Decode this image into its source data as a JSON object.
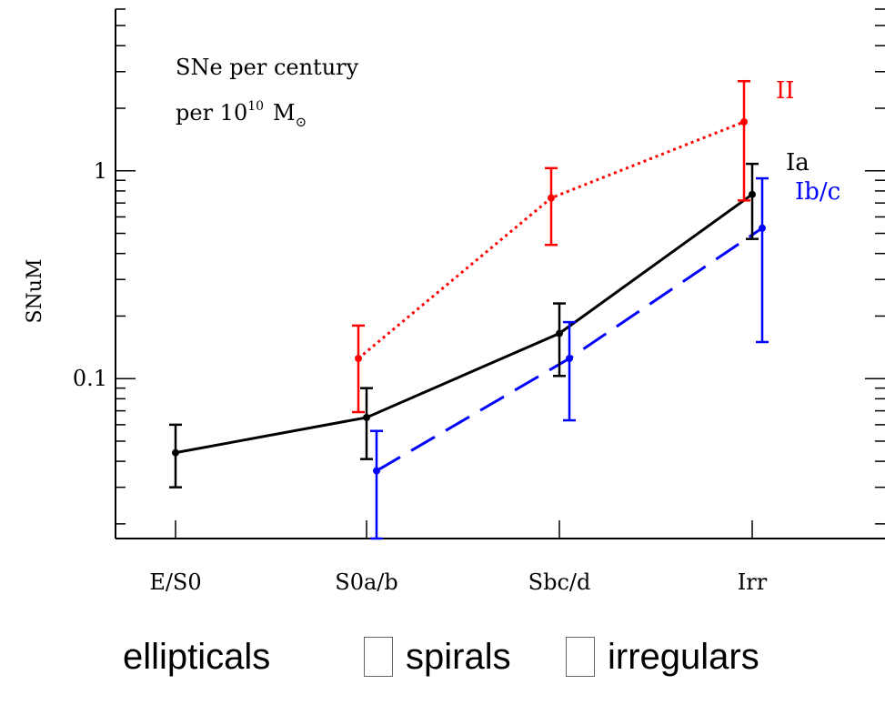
{
  "chart_data": {
    "type": "line",
    "ylabel": "SNuM",
    "yscale": "log",
    "ylim": [
      0.017,
      6
    ],
    "categories": [
      "E/S0",
      "S0a/b",
      "Sbc/d",
      "Irr"
    ],
    "y_tick_labels": [
      {
        "value": 0.1,
        "label": "0.1"
      },
      {
        "value": 1,
        "label": "1"
      }
    ],
    "annotation": {
      "line1": "SNe per century",
      "line2_prefix": "per 10",
      "line2_exp": "10",
      "line2_unit": "M",
      "line2_sub": "⊙"
    },
    "series": [
      {
        "name": "Ia",
        "color": "#000000",
        "style": "solid",
        "points": [
          {
            "x": "E/S0",
            "y": 0.044,
            "lo": 0.03,
            "hi": 0.06
          },
          {
            "x": "S0a/b",
            "y": 0.065,
            "lo": 0.041,
            "hi": 0.09
          },
          {
            "x": "Sbc/d",
            "y": 0.165,
            "lo": 0.103,
            "hi": 0.23
          },
          {
            "x": "Irr",
            "y": 0.77,
            "lo": 0.47,
            "hi": 1.08
          }
        ]
      },
      {
        "name": "Ib/c",
        "color": "#0000ff",
        "style": "dashed",
        "points": [
          {
            "x": "S0a/b",
            "y": 0.036,
            "lo": 0.017,
            "hi": 0.056
          },
          {
            "x": "Sbc/d",
            "y": 0.125,
            "lo": 0.063,
            "hi": 0.187
          },
          {
            "x": "Irr",
            "y": 0.53,
            "lo": 0.15,
            "hi": 0.92
          }
        ]
      },
      {
        "name": "II",
        "color": "#ff0000",
        "style": "dotted",
        "points": [
          {
            "x": "S0a/b",
            "y": 0.125,
            "lo": 0.069,
            "hi": 0.18
          },
          {
            "x": "Sbc/d",
            "y": 0.74,
            "lo": 0.44,
            "hi": 1.03
          },
          {
            "x": "Irr",
            "y": 1.72,
            "lo": 0.72,
            "hi": 2.7
          }
        ]
      }
    ]
  },
  "captions": {
    "ellipticals": "ellipticals",
    "spirals": "spirals",
    "irregulars": "irregulars"
  }
}
